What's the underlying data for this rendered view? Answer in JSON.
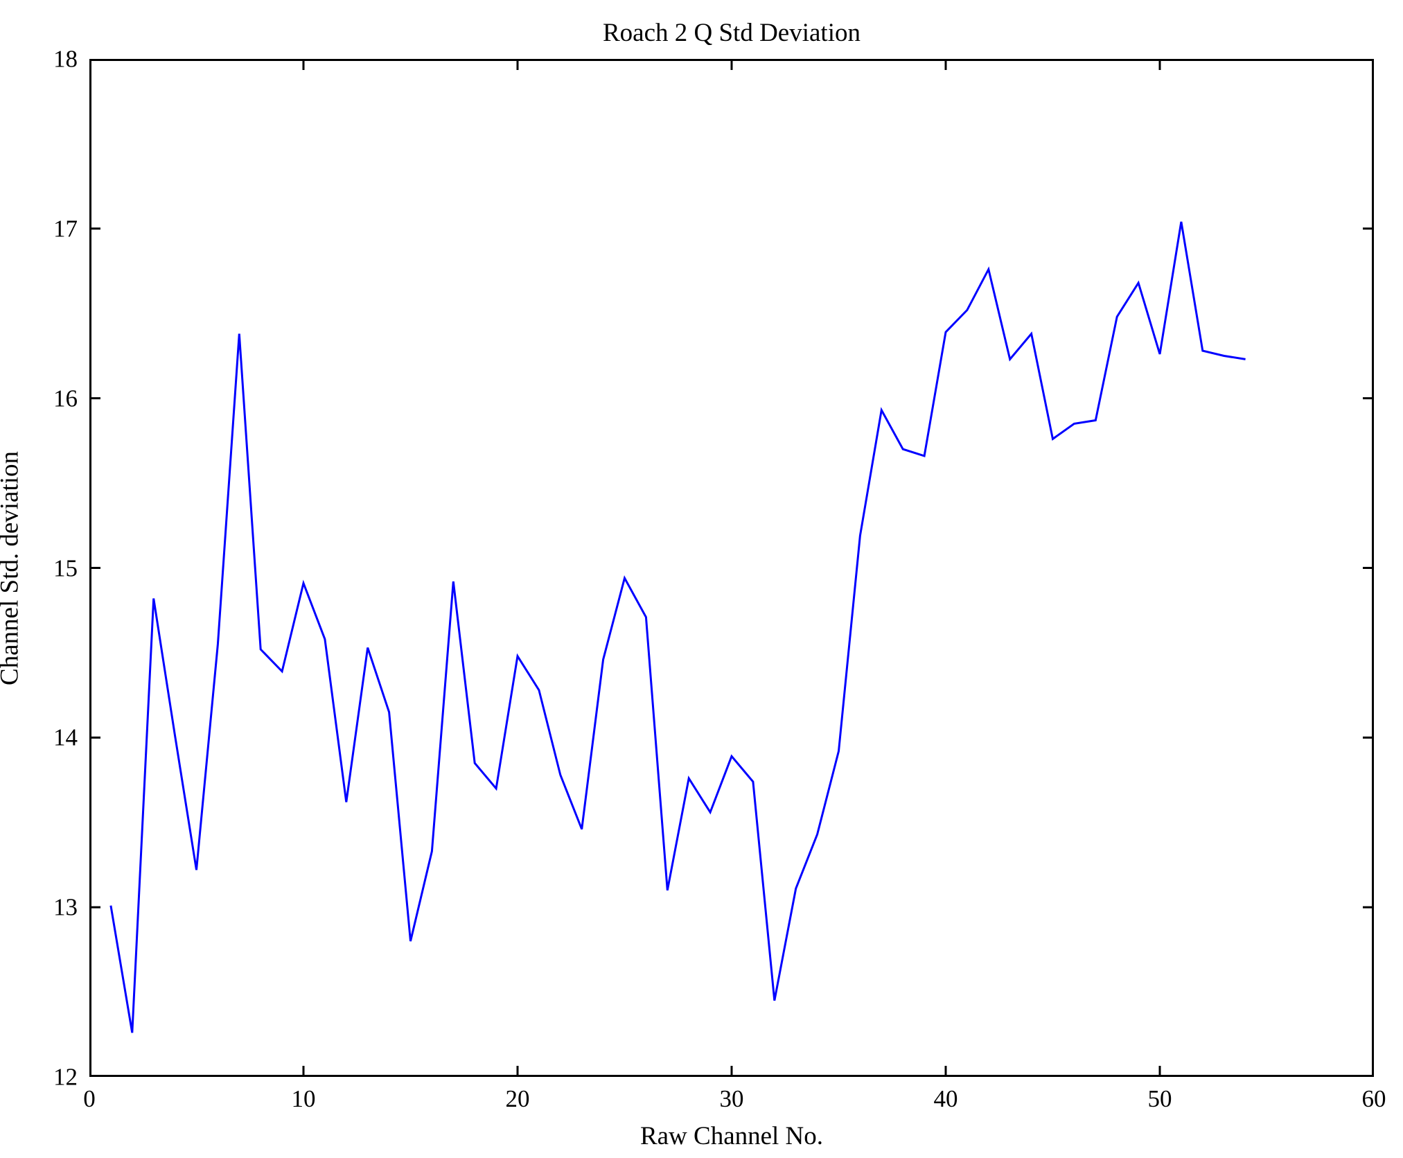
{
  "figure": {
    "background": "#FFFFFF",
    "axis_color": "#000000"
  },
  "chart_data": {
    "type": "line",
    "title": "Roach 2 Q Std Deviation",
    "xlabel": "Raw Channel No.",
    "ylabel": "Channel Std. deviation",
    "xlim": [
      0,
      60
    ],
    "ylim": [
      12,
      18
    ],
    "xticks": [
      0,
      10,
      20,
      30,
      40,
      50,
      60
    ],
    "yticks": [
      12,
      13,
      14,
      15,
      16,
      17,
      18
    ],
    "grid": false,
    "legend": "none",
    "line_color": "#0000FF",
    "series_name": "Channel Std. deviation",
    "x": [
      1,
      2,
      3,
      4,
      5,
      6,
      7,
      8,
      9,
      10,
      11,
      12,
      13,
      14,
      15,
      16,
      17,
      18,
      19,
      20,
      21,
      22,
      23,
      24,
      25,
      26,
      27,
      28,
      29,
      30,
      31,
      32,
      33,
      34,
      35,
      36,
      37,
      38,
      39,
      40,
      41,
      42,
      43,
      44,
      45,
      46,
      47,
      48,
      49,
      50,
      51,
      52,
      53,
      54
    ],
    "values": [
      13.01,
      12.26,
      14.82,
      14.01,
      13.22,
      14.55,
      16.38,
      14.52,
      14.39,
      14.91,
      14.58,
      13.62,
      14.53,
      14.15,
      12.8,
      13.33,
      14.92,
      13.85,
      13.7,
      14.48,
      14.28,
      13.78,
      13.46,
      14.46,
      14.94,
      14.71,
      13.1,
      13.76,
      13.56,
      13.89,
      13.74,
      12.45,
      13.11,
      13.43,
      13.92,
      15.19,
      15.93,
      15.7,
      15.66,
      16.39,
      16.52,
      16.76,
      16.23,
      16.38,
      15.76,
      15.85,
      15.87,
      16.48,
      16.68,
      16.26,
      17.04,
      16.28,
      16.25,
      16.23
    ]
  }
}
